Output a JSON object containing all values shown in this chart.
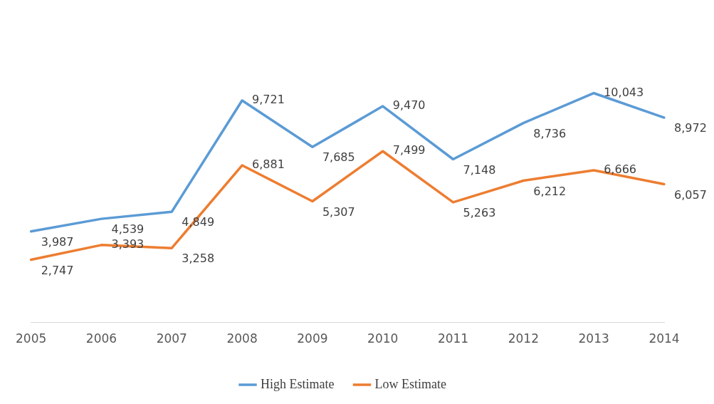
{
  "chart_data": {
    "type": "line",
    "categories": [
      "2005",
      "2006",
      "2007",
      "2008",
      "2009",
      "2010",
      "2011",
      "2012",
      "2013",
      "2014"
    ],
    "series": [
      {
        "name": "High Estimate",
        "color": "#5b9bd5",
        "values": [
          3987,
          4539,
          4849,
          9721,
          7685,
          9470,
          7148,
          8736,
          10043,
          8972
        ],
        "value_labels": [
          "3,987",
          "4,539",
          "4,849",
          "9,721",
          "7,685",
          "9,470",
          "7,148",
          "8,736",
          "10,043",
          "8,972"
        ]
      },
      {
        "name": "Low Estimate",
        "color": "#ed7d31",
        "values": [
          2747,
          3393,
          3258,
          6881,
          5307,
          7499,
          5263,
          6212,
          6666,
          6057
        ],
        "value_labels": [
          "2,747",
          "3,393",
          "3,258",
          "6,881",
          "5,307",
          "7,499",
          "5,263",
          "6,212",
          "6,666",
          "6,057"
        ]
      }
    ],
    "tick_labels": "x",
    "legend": "bottom",
    "marker": "none",
    "line_style": "solid"
  }
}
